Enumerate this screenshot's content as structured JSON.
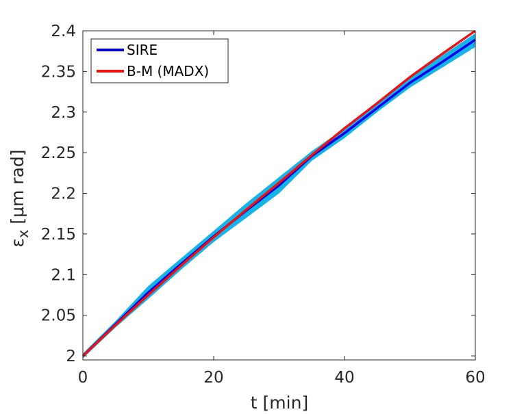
{
  "chart_data": {
    "type": "line",
    "xlabel": "t [min]",
    "ylabel_parts": {
      "eps": "ε",
      "sub": "x",
      "rest": " [μm rad]"
    },
    "xlim": [
      0,
      60
    ],
    "ylim": [
      1.995,
      2.4
    ],
    "xticks": [
      0,
      20,
      40,
      60
    ],
    "xtick_labels": [
      "0",
      "20",
      "40",
      "60"
    ],
    "yticks": [
      2,
      2.05,
      2.1,
      2.15,
      2.2,
      2.25,
      2.3,
      2.35,
      2.4
    ],
    "ytick_labels": [
      "2",
      "2.05",
      "2.1",
      "2.15",
      "2.2",
      "2.25",
      "2.3",
      "2.35",
      "2.4"
    ],
    "grid": false,
    "legend_placement": "top-left",
    "band": {
      "of_series": "SIRE",
      "color": "#14b4ea",
      "x": [
        0,
        5,
        10,
        15,
        20,
        25,
        30,
        35,
        40,
        45,
        50,
        55,
        60
      ],
      "lower": [
        1.997,
        2.035,
        2.07,
        2.106,
        2.14,
        2.17,
        2.2,
        2.24,
        2.268,
        2.3,
        2.33,
        2.355,
        2.38
      ],
      "upper": [
        2.003,
        2.043,
        2.086,
        2.12,
        2.154,
        2.188,
        2.22,
        2.252,
        2.28,
        2.31,
        2.342,
        2.37,
        2.397
      ]
    },
    "series": [
      {
        "name": "SIRE",
        "color": "#0000ee",
        "x": [
          0,
          5,
          10,
          15,
          20,
          25,
          30,
          35,
          40,
          45,
          50,
          55,
          60
        ],
        "y": [
          2.0,
          2.039,
          2.078,
          2.113,
          2.147,
          2.179,
          2.21,
          2.246,
          2.274,
          2.305,
          2.336,
          2.362,
          2.389
        ]
      },
      {
        "name": "B-M (MADX)",
        "color": "#ee1111",
        "x": [
          0,
          5,
          10,
          15,
          20,
          25,
          30,
          35,
          40,
          45,
          50,
          55,
          60
        ],
        "y": [
          2.0,
          2.038,
          2.075,
          2.111,
          2.146,
          2.18,
          2.213,
          2.247,
          2.28,
          2.311,
          2.343,
          2.372,
          2.4
        ]
      }
    ]
  }
}
